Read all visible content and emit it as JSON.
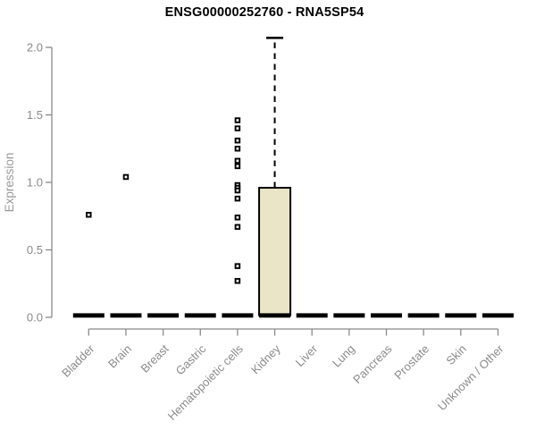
{
  "chart_data": {
    "type": "boxplot",
    "title": "ENSG00000252760 - RNA5SP54",
    "ylabel": "Expression",
    "xlabel": "",
    "ylim": [
      0.0,
      2.0
    ],
    "yticks": [
      0.0,
      0.5,
      1.0,
      1.5,
      2.0
    ],
    "grid": false,
    "legend": "none",
    "categories": [
      "Bladder",
      "Brain",
      "Breast",
      "Gastric",
      "Hematopoietic cells",
      "Kidney",
      "Liver",
      "Lung",
      "Pancreas",
      "Prostate",
      "Skin",
      "Unknown / Other"
    ],
    "boxes": [
      {
        "category": "Bladder",
        "whisker_low": 0,
        "q1": 0,
        "median": 0,
        "q3": 0,
        "whisker_high": 0,
        "outliers": [
          0.76
        ]
      },
      {
        "category": "Brain",
        "whisker_low": 0,
        "q1": 0,
        "median": 0,
        "q3": 0,
        "whisker_high": 0,
        "outliers": [
          1.04
        ]
      },
      {
        "category": "Breast",
        "whisker_low": 0,
        "q1": 0,
        "median": 0,
        "q3": 0,
        "whisker_high": 0,
        "outliers": []
      },
      {
        "category": "Gastric",
        "whisker_low": 0,
        "q1": 0,
        "median": 0,
        "q3": 0,
        "whisker_high": 0,
        "outliers": []
      },
      {
        "category": "Hematopoietic cells",
        "whisker_low": 0,
        "q1": 0,
        "median": 0,
        "q3": 0,
        "whisker_high": 0,
        "outliers": [
          1.46,
          1.4,
          1.31,
          1.25,
          1.16,
          1.12,
          0.98,
          0.96,
          0.94,
          0.88,
          0.74,
          0.67,
          0.38,
          0.27
        ]
      },
      {
        "category": "Kidney",
        "whisker_low": 0,
        "q1": 0,
        "median": 0,
        "q3": 0.96,
        "whisker_high": 2.07,
        "outliers": []
      },
      {
        "category": "Liver",
        "whisker_low": 0,
        "q1": 0,
        "median": 0,
        "q3": 0,
        "whisker_high": 0,
        "outliers": []
      },
      {
        "category": "Lung",
        "whisker_low": 0,
        "q1": 0,
        "median": 0,
        "q3": 0,
        "whisker_high": 0,
        "outliers": []
      },
      {
        "category": "Pancreas",
        "whisker_low": 0,
        "q1": 0,
        "median": 0,
        "q3": 0,
        "whisker_high": 0,
        "outliers": []
      },
      {
        "category": "Prostate",
        "whisker_low": 0,
        "q1": 0,
        "median": 0,
        "q3": 0,
        "whisker_high": 0,
        "outliers": []
      },
      {
        "category": "Skin",
        "whisker_low": 0,
        "q1": 0,
        "median": 0,
        "q3": 0,
        "whisker_high": 0,
        "outliers": []
      },
      {
        "category": "Unknown / Other",
        "whisker_low": 0,
        "q1": 0,
        "median": 0,
        "q3": 0,
        "whisker_high": 0,
        "outliers": []
      }
    ],
    "colors": {
      "box_fill": "#ebe5c8",
      "box_stroke": "#000000",
      "median_color": "#000000",
      "outlier_stroke": "#000000",
      "axis_color": "#8a8a8a",
      "tick_label_color": "#8a8a8a",
      "axis_title_color": "#999999",
      "title_color": "#000000",
      "background": "#ffffff"
    }
  }
}
